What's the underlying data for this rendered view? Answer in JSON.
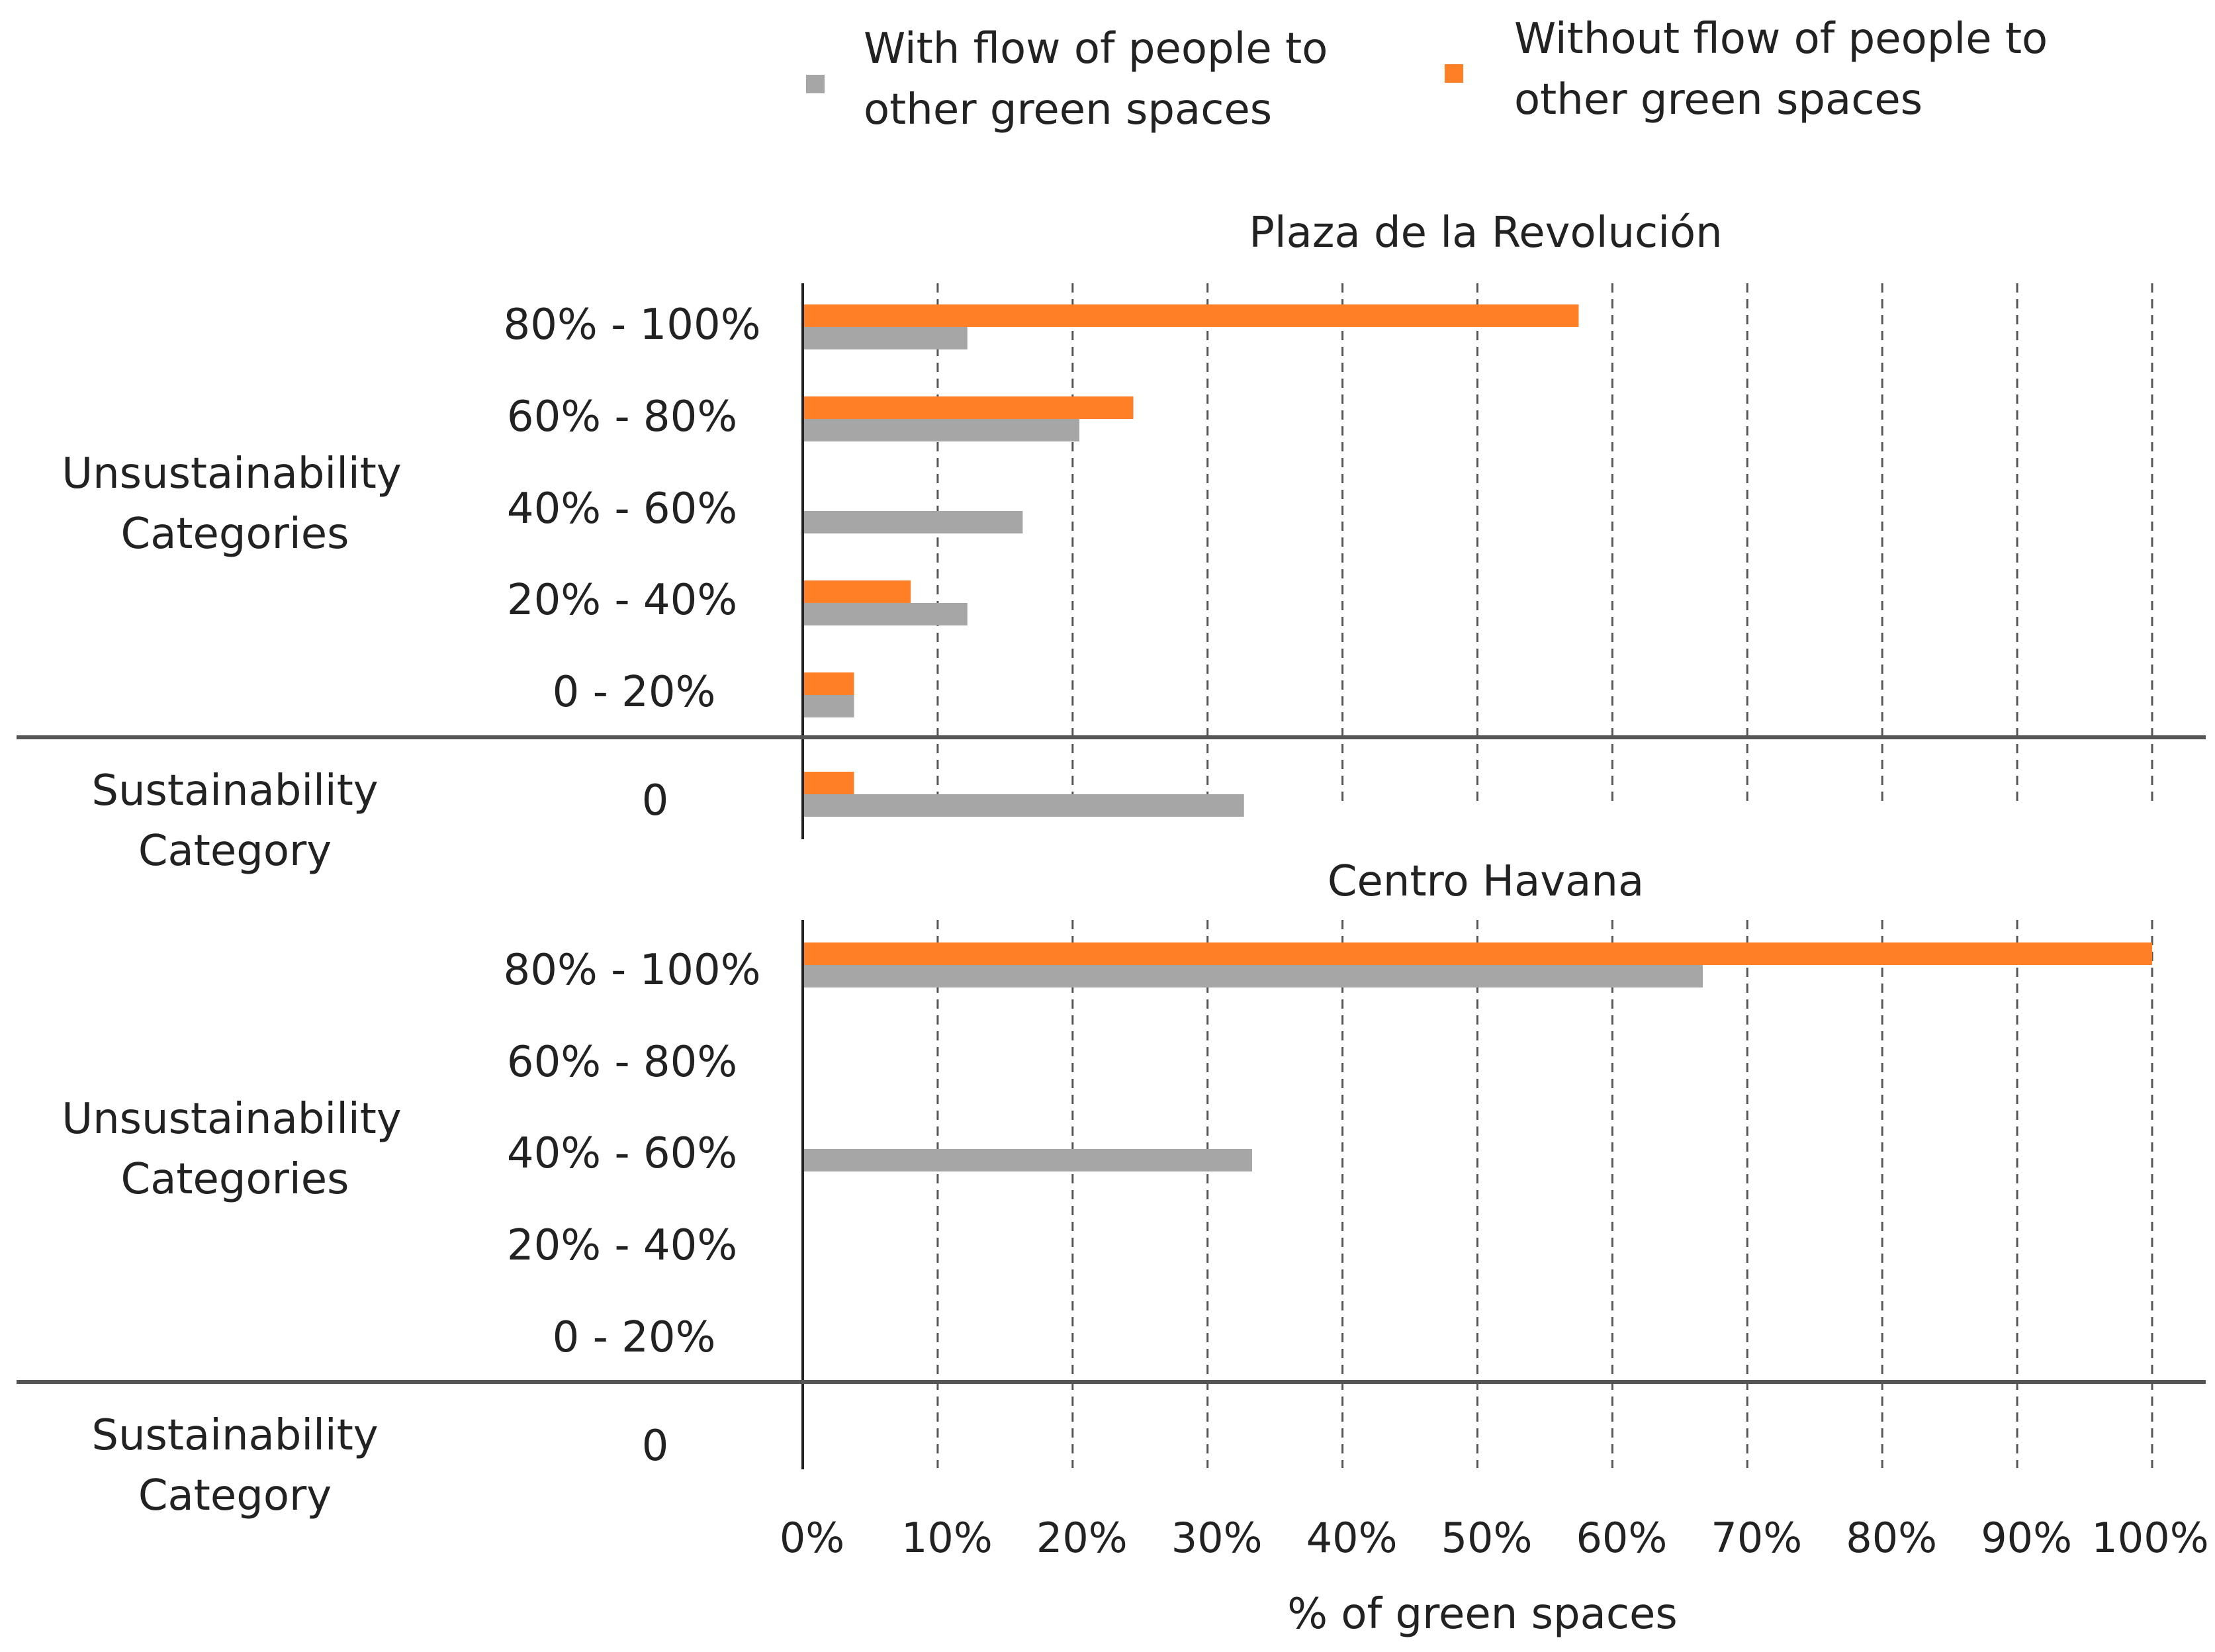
{
  "chart_data": {
    "type": "bar",
    "orientation": "horizontal",
    "legend": {
      "position": "top",
      "entries": [
        {
          "key": "with",
          "line1": "With flow of people to",
          "line2": "other green spaces",
          "color": "#a6a6a6"
        },
        {
          "key": "without",
          "line1": "Without flow of people to",
          "line2": "other green spaces",
          "color": "#ff7f27"
        }
      ]
    },
    "xlabel": "% of green spaces",
    "xlim": [
      0,
      100
    ],
    "xticks": [
      "0%",
      "10%",
      "20%",
      "30%",
      "40%",
      "50%",
      "60%",
      "70%",
      "80%",
      "90%",
      "100%"
    ],
    "grid": "vertical dashed",
    "group_labels": {
      "unsustainability_line1": "Unsustainability",
      "unsustainability_line2": "Categories",
      "sustainability_line1": "Sustainability",
      "sustainability_line2": "Category"
    },
    "panels": [
      {
        "title": "Plaza de la Revolución",
        "categories": [
          "80% - 100%",
          "60% - 80%",
          "40% - 60%",
          "20% - 40%",
          "0 - 20%",
          "0"
        ],
        "series": [
          {
            "name": "Without flow of people to other green spaces",
            "key": "without",
            "values": [
              57.5,
              24.5,
              0,
              8,
              3.8,
              3.8
            ]
          },
          {
            "name": "With flow of people to other green spaces",
            "key": "with",
            "values": [
              12.2,
              20.5,
              16.3,
              12.2,
              3.8,
              32.7
            ]
          }
        ]
      },
      {
        "title": "Centro Havana",
        "categories": [
          "80% - 100%",
          "60% - 80%",
          "40% - 60%",
          "20% - 40%",
          "0 - 20%",
          "0"
        ],
        "series": [
          {
            "name": "Without flow of people to other green spaces",
            "key": "without",
            "values": [
              100,
              0,
              0,
              0,
              0,
              0
            ]
          },
          {
            "name": "With flow of people to other green spaces",
            "key": "with",
            "values": [
              66.7,
              0,
              33.3,
              0,
              0,
              0
            ]
          }
        ]
      }
    ]
  }
}
